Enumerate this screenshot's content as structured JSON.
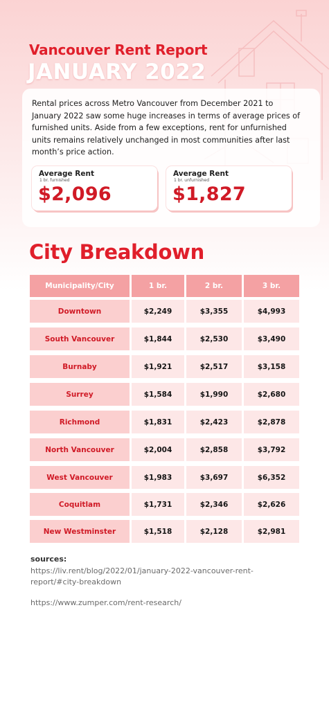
{
  "header": {
    "title": "Vancouver Rent Report",
    "subtitle": "JANUARY 2022"
  },
  "intro": "Rental prices across Metro Vancouver from December 2021 to January 2022 saw some huge increases in terms of average prices of furnished units. Aside from a few exceptions, rent for unfurnished units remains relatively unchanged in most communities after last month’s price action.",
  "stats": [
    {
      "label": "Average Rent",
      "sub": "1 br. furnished",
      "value": "$2,096"
    },
    {
      "label": "Average Rent",
      "sub": "1 br. unfurnished",
      "value": "$1,827"
    }
  ],
  "breakdown": {
    "title": "City Breakdown",
    "headers": [
      "Municipality/City",
      "1 br.",
      "2 br.",
      "3 br."
    ],
    "rows": [
      [
        "Downtown",
        "$2,249",
        "$3,355",
        "$4,993"
      ],
      [
        "South Vancouver",
        "$1,844",
        "$2,530",
        "$3,490"
      ],
      [
        "Burnaby",
        "$1,921",
        "$2,517",
        "$3,158"
      ],
      [
        "Surrey",
        "$1,584",
        "$1,990",
        "$2,680"
      ],
      [
        "Richmond",
        "$1,831",
        "$2,423",
        "$2,878"
      ],
      [
        "North Vancouver",
        "$2,004",
        "$2,858",
        "$3,792"
      ],
      [
        "West Vancouver",
        "$1,983",
        "$3,697",
        "$6,352"
      ],
      [
        "Coquitlam",
        "$1,731",
        "$2,346",
        "$2,626"
      ],
      [
        "New Westminster",
        "$1,518",
        "$2,128",
        "$2,981"
      ]
    ]
  },
  "sources": {
    "heading": "sources:",
    "links": [
      "https://liv.rent/blog/2022/01/january-2022-vancouver-rent-report/#city-breakdown",
      "https://www.zumper.com/rent-research/"
    ]
  },
  "colors": {
    "accent": "#e01f2b",
    "header_cell": "#f4a1a3",
    "name_cell": "#fbcfcf",
    "value_cell": "#fde7e7"
  },
  "icons": [
    "house-outline-icon"
  ]
}
